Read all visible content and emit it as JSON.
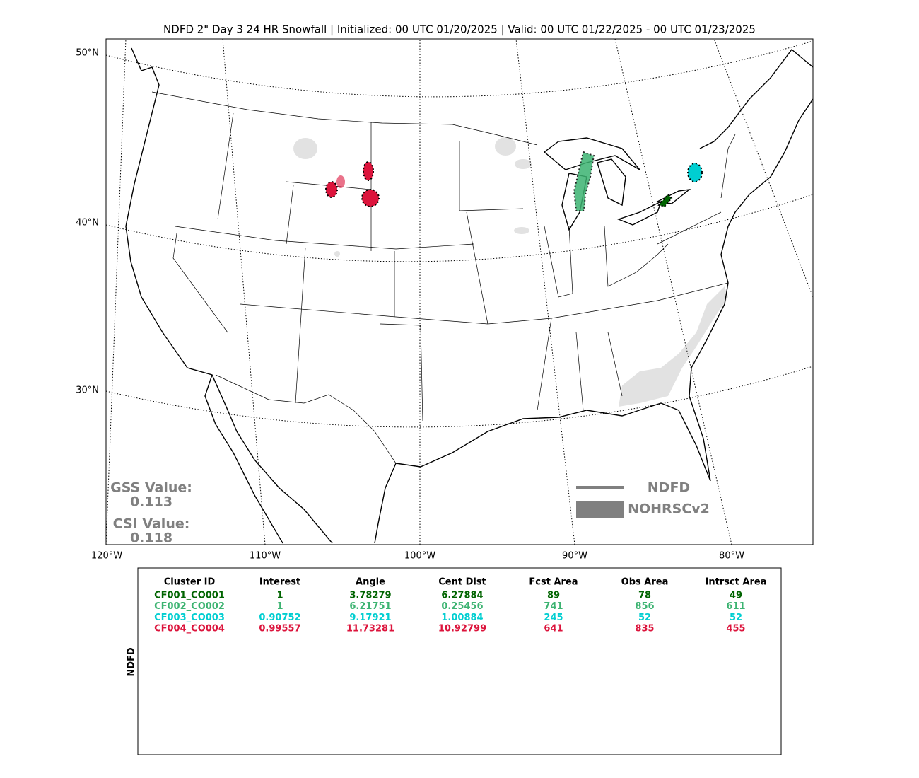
{
  "header": {
    "title": "NDFD 2\" Day 3 24 HR Snowfall | Initialized: 00 UTC 01/20/2025 | Valid: 00 UTC 01/22/2025 - 00 UTC 01/23/2025"
  },
  "map": {
    "lat_labels": [
      "50°N",
      "40°N",
      "30°N"
    ],
    "lon_labels": [
      "120°W",
      "110°W",
      "100°W",
      "90°W",
      "80°W"
    ],
    "gss_label": "GSS Value:",
    "gss_value": "0.113",
    "csi_label": "CSI Value:",
    "csi_value": "0.118",
    "legend": {
      "line": "NDFD",
      "fill": "NOHRSCv2"
    }
  },
  "table": {
    "side_label": "NDFD",
    "header": [
      "Cluster ID",
      "Interest",
      "Angle",
      "Cent Dist",
      "Fcst Area",
      "Obs Area",
      "Intrsct Area"
    ],
    "row_colors": [
      "#006400",
      "#3cb371",
      "#00ced1",
      "#dc143c"
    ],
    "rows": [
      [
        "CF001_CO001",
        "1",
        "3.78279",
        "6.27884",
        "89",
        "78",
        "49"
      ],
      [
        "CF002_CO002",
        "1",
        "6.21751",
        "0.25456",
        "741",
        "856",
        "611"
      ],
      [
        "CF003_CO003",
        "0.90752",
        "9.17921",
        "1.00884",
        "245",
        "52",
        "52"
      ],
      [
        "CF004_CO004",
        "0.99557",
        "11.73281",
        "10.92799",
        "641",
        "835",
        "455"
      ]
    ]
  }
}
